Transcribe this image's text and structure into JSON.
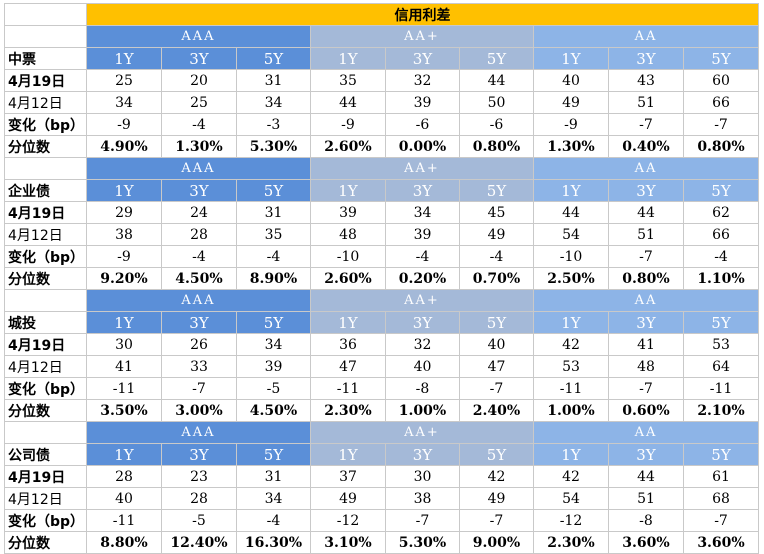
{
  "title": "信用利差",
  "groups": [
    "AAA",
    "AA+",
    "AA"
  ],
  "tenors": [
    "1Y",
    "3Y",
    "5Y"
  ],
  "row_labels": {
    "current": "4月19日",
    "previous": "4月12日",
    "change": "变化（bp）",
    "percentile": "分位数"
  },
  "sections": [
    {
      "name": "中票",
      "current": [
        "25",
        "20",
        "31",
        "35",
        "32",
        "44",
        "40",
        "43",
        "60"
      ],
      "previous": [
        "34",
        "25",
        "34",
        "44",
        "39",
        "50",
        "49",
        "51",
        "66"
      ],
      "change": [
        "-9",
        "-4",
        "-3",
        "-9",
        "-6",
        "-6",
        "-9",
        "-7",
        "-7"
      ],
      "percentile": [
        "4.90%",
        "1.30%",
        "5.30%",
        "2.60%",
        "0.00%",
        "0.80%",
        "1.30%",
        "0.40%",
        "0.80%"
      ]
    },
    {
      "name": "企业债",
      "current": [
        "29",
        "24",
        "31",
        "39",
        "34",
        "45",
        "44",
        "44",
        "62"
      ],
      "previous": [
        "38",
        "28",
        "35",
        "48",
        "39",
        "49",
        "54",
        "51",
        "66"
      ],
      "change": [
        "-9",
        "-4",
        "-4",
        "-10",
        "-4",
        "-4",
        "-10",
        "-7",
        "-4"
      ],
      "percentile": [
        "9.20%",
        "4.50%",
        "8.90%",
        "2.60%",
        "0.20%",
        "0.70%",
        "2.50%",
        "0.80%",
        "1.10%"
      ]
    },
    {
      "name": "城投",
      "current": [
        "30",
        "26",
        "34",
        "36",
        "32",
        "40",
        "42",
        "41",
        "53"
      ],
      "previous": [
        "41",
        "33",
        "39",
        "47",
        "40",
        "47",
        "53",
        "48",
        "64"
      ],
      "change": [
        "-11",
        "-7",
        "-5",
        "-11",
        "-8",
        "-7",
        "-11",
        "-7",
        "-11"
      ],
      "percentile": [
        "3.50%",
        "3.00%",
        "4.50%",
        "2.30%",
        "1.00%",
        "2.40%",
        "1.00%",
        "0.60%",
        "2.10%"
      ]
    },
    {
      "name": "公司债",
      "current": [
        "28",
        "23",
        "31",
        "37",
        "30",
        "42",
        "42",
        "44",
        "61"
      ],
      "previous": [
        "40",
        "28",
        "34",
        "49",
        "38",
        "49",
        "54",
        "51",
        "68"
      ],
      "change": [
        "-11",
        "-5",
        "-4",
        "-12",
        "-7",
        "-7",
        "-12",
        "-8",
        "-7"
      ],
      "percentile": [
        "8.80%",
        "12.40%",
        "16.30%",
        "3.10%",
        "5.30%",
        "9.00%",
        "2.30%",
        "3.60%",
        "3.60%"
      ]
    }
  ]
}
